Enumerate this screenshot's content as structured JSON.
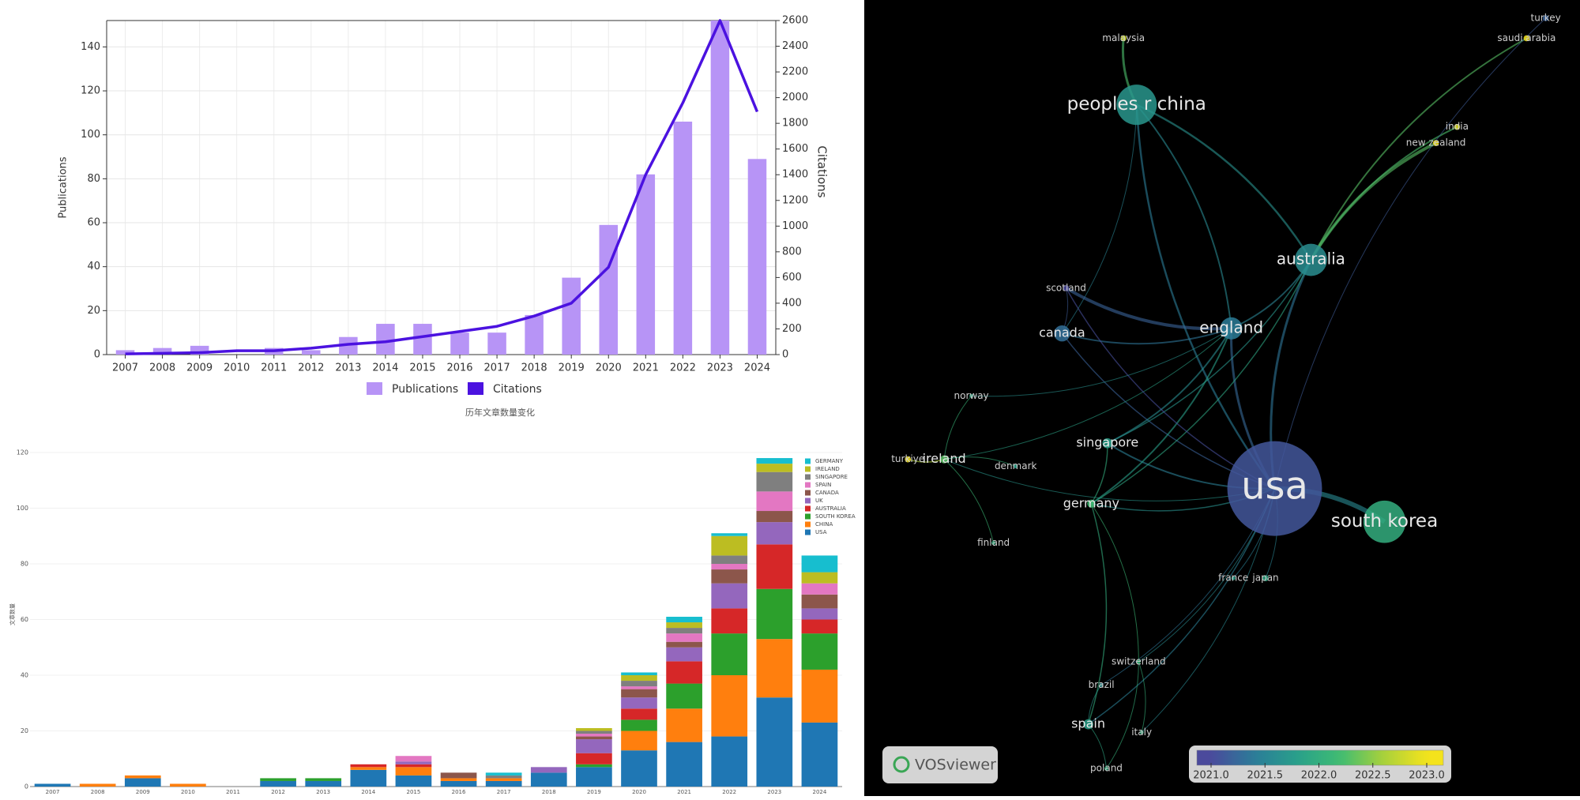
{
  "chart_data": [
    {
      "type": "bar-line",
      "categories": [
        "2007",
        "2008",
        "2009",
        "2010",
        "2011",
        "2012",
        "2013",
        "2014",
        "2015",
        "2016",
        "2017",
        "2018",
        "2019",
        "2020",
        "2021",
        "2022",
        "2023",
        "2024"
      ],
      "series": [
        {
          "name": "Publications",
          "color": "#b794f6",
          "values": [
            2,
            3,
            4,
            0,
            3,
            2,
            8,
            14,
            14,
            10,
            10,
            18,
            35,
            59,
            82,
            106,
            152,
            89
          ]
        },
        {
          "name": "Citations",
          "color": "#4b12e0",
          "axis": "y2",
          "values": [
            5,
            10,
            15,
            30,
            30,
            50,
            80,
            100,
            140,
            180,
            220,
            300,
            400,
            680,
            1400,
            1960,
            2600,
            1890
          ]
        }
      ],
      "ylim": [
        0,
        152
      ],
      "yticks": [
        0,
        20,
        40,
        60,
        80,
        100,
        120,
        140
      ],
      "y2lim": [
        0,
        2600
      ],
      "y2ticks": [
        0,
        200,
        400,
        600,
        800,
        1000,
        1200,
        1400,
        1600,
        1800,
        2000,
        2200,
        2400,
        2600
      ],
      "ylabel": "Publications",
      "y2label": "Citations",
      "caption": "历年文章数量变化",
      "grid": true
    },
    {
      "type": "stacked-bar",
      "categories": [
        "2007",
        "2008",
        "2009",
        "2010",
        "2011",
        "2012",
        "2013",
        "2014",
        "2015",
        "2016",
        "2017",
        "2018",
        "2019",
        "2020",
        "2021",
        "2022",
        "2023",
        "2024"
      ],
      "series": [
        {
          "name": "USA",
          "color": "#1f77b4",
          "values": [
            1,
            0,
            3,
            0,
            0,
            2,
            2,
            6,
            4,
            2,
            2,
            5,
            7,
            13,
            16,
            18,
            32,
            23
          ]
        },
        {
          "name": "CHINA",
          "color": "#ff7f0e",
          "values": [
            0,
            1,
            1,
            1,
            0,
            0,
            0,
            1,
            3,
            1,
            1,
            0,
            0,
            7,
            12,
            22,
            21,
            19
          ]
        },
        {
          "name": "SOUTH KOREA",
          "color": "#2ca02c",
          "values": [
            0,
            0,
            0,
            0,
            0,
            1,
            1,
            0,
            0,
            0,
            0,
            0,
            1,
            4,
            9,
            15,
            18,
            13
          ]
        },
        {
          "name": "AUSTRALIA",
          "color": "#d62728",
          "values": [
            0,
            0,
            0,
            0,
            0,
            0,
            0,
            1,
            1,
            0,
            0,
            0,
            4,
            4,
            8,
            9,
            16,
            5
          ]
        },
        {
          "name": "UK",
          "color": "#9467bd",
          "values": [
            0,
            0,
            0,
            0,
            0,
            0,
            0,
            0,
            1,
            0,
            0,
            2,
            5,
            4,
            5,
            9,
            8,
            4
          ]
        },
        {
          "name": "CANADA",
          "color": "#8c564b",
          "values": [
            0,
            0,
            0,
            0,
            0,
            0,
            0,
            0,
            0,
            2,
            0,
            0,
            1,
            3,
            2,
            5,
            4,
            5
          ]
        },
        {
          "name": "SPAIN",
          "color": "#e377c2",
          "values": [
            0,
            0,
            0,
            0,
            0,
            0,
            0,
            0,
            2,
            0,
            0,
            0,
            1,
            1,
            3,
            2,
            7,
            4
          ]
        },
        {
          "name": "SINGAPORE",
          "color": "#7f7f7f",
          "values": [
            0,
            0,
            0,
            0,
            0,
            0,
            0,
            0,
            0,
            0,
            1,
            0,
            1,
            2,
            2,
            3,
            7,
            0
          ]
        },
        {
          "name": "IRELAND",
          "color": "#bcbd22",
          "values": [
            0,
            0,
            0,
            0,
            0,
            0,
            0,
            0,
            0,
            0,
            0,
            0,
            1,
            2,
            2,
            7,
            3,
            4
          ]
        },
        {
          "name": "GERMANY",
          "color": "#17becf",
          "values": [
            0,
            0,
            0,
            0,
            0,
            0,
            0,
            0,
            0,
            0,
            1,
            0,
            0,
            1,
            2,
            1,
            2,
            6
          ]
        }
      ],
      "ylim": [
        0,
        120
      ],
      "yticks": [
        0,
        20,
        40,
        60,
        80,
        100,
        120
      ],
      "ylabel": "文章数量"
    },
    {
      "type": "network",
      "nodes": [
        {
          "label": "usa",
          "year": 2021.1
        },
        {
          "label": "south korea",
          "year": 2022.0
        },
        {
          "label": "peoples r china",
          "year": 2021.7
        },
        {
          "label": "australia",
          "year": 2021.6
        },
        {
          "label": "england",
          "year": 2021.4
        },
        {
          "label": "canada",
          "year": 2021.3
        },
        {
          "label": "singapore",
          "year": 2021.8
        },
        {
          "label": "germany",
          "year": 2022.2
        },
        {
          "label": "ireland",
          "year": 2022.3
        },
        {
          "label": "turkiye",
          "year": 2023.0
        },
        {
          "label": "denmark",
          "year": 2021.8
        },
        {
          "label": "norway",
          "year": 2021.9
        },
        {
          "label": "scotland",
          "year": 2021.0
        },
        {
          "label": "finland",
          "year": 2022.0
        },
        {
          "label": "france",
          "year": 2021.8
        },
        {
          "label": "japan",
          "year": 2021.9
        },
        {
          "label": "switzerland",
          "year": 2022.1
        },
        {
          "label": "brazil",
          "year": 2021.6
        },
        {
          "label": "spain",
          "year": 2021.8
        },
        {
          "label": "italy",
          "year": 2022.0
        },
        {
          "label": "poland",
          "year": 2022.0
        },
        {
          "label": "malaysia",
          "year": 2022.8
        },
        {
          "label": "india",
          "year": 2022.9
        },
        {
          "label": "new zealand",
          "year": 2023.0
        },
        {
          "label": "turkey",
          "year": 2021.2
        },
        {
          "label": "saudi arabia",
          "year": 2023.0
        }
      ],
      "clim": [
        2021,
        2023
      ],
      "cticks": [
        {
          "value": 2021,
          "label": "2021.0"
        },
        {
          "value": 2021.5,
          "label": "2021.5"
        },
        {
          "value": 2022,
          "label": "2022.0"
        },
        {
          "value": 2022.5,
          "label": "2022.5"
        },
        {
          "value": 2023,
          "label": "2023.0"
        }
      ],
      "brand": "VOSviewer"
    }
  ]
}
